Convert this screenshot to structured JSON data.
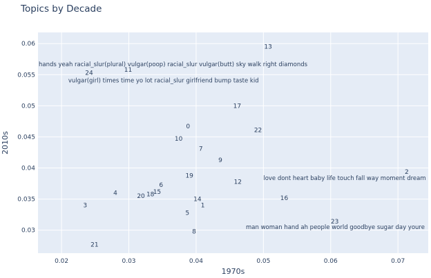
{
  "chart_data": {
    "type": "scatter",
    "title": "Topics by Decade",
    "xlabel": "1970s",
    "ylabel": "2010s",
    "xlim": [
      0.0165,
      0.0745
    ],
    "ylim": [
      0.0263,
      0.0618
    ],
    "xticks": [
      0.02,
      0.03,
      0.04,
      0.05,
      0.06,
      0.07
    ],
    "xtick_labels": [
      "0.02",
      "0.03",
      "0.04",
      "0.05",
      "0.06",
      "0.07"
    ],
    "yticks": [
      0.03,
      0.035,
      0.04,
      0.045,
      0.05,
      0.055,
      0.06
    ],
    "ytick_labels": [
      "0.03",
      "0.035",
      "0.04",
      "0.045",
      "0.05",
      "0.055",
      "0.06"
    ],
    "grid": true,
    "points": [
      {
        "label": "0",
        "x": 0.0388,
        "y": 0.0467
      },
      {
        "label": "1",
        "x": 0.041,
        "y": 0.034
      },
      {
        "label": "2",
        "x": 0.0713,
        "y": 0.0394
      },
      {
        "label": "3",
        "x": 0.0235,
        "y": 0.034
      },
      {
        "label": "4",
        "x": 0.028,
        "y": 0.036
      },
      {
        "label": "5",
        "x": 0.0387,
        "y": 0.0328
      },
      {
        "label": "6",
        "x": 0.0348,
        "y": 0.0373
      },
      {
        "label": "7",
        "x": 0.0407,
        "y": 0.0431
      },
      {
        "label": "8",
        "x": 0.0397,
        "y": 0.0298
      },
      {
        "label": "9",
        "x": 0.0436,
        "y": 0.0413
      },
      {
        "label": "10",
        "x": 0.0374,
        "y": 0.0447
      },
      {
        "label": "11",
        "x": 0.0299,
        "y": 0.0558
      },
      {
        "label": "12",
        "x": 0.0462,
        "y": 0.0378
      },
      {
        "label": "13",
        "x": 0.0507,
        "y": 0.0595
      },
      {
        "label": "14",
        "x": 0.0402,
        "y": 0.035
      },
      {
        "label": "15",
        "x": 0.0342,
        "y": 0.0362
      },
      {
        "label": "16",
        "x": 0.0531,
        "y": 0.0352
      },
      {
        "label": "17",
        "x": 0.0461,
        "y": 0.05
      },
      {
        "label": "18",
        "x": 0.0332,
        "y": 0.0358
      },
      {
        "label": "19",
        "x": 0.039,
        "y": 0.0388
      },
      {
        "label": "20",
        "x": 0.0318,
        "y": 0.0355
      },
      {
        "label": "21",
        "x": 0.0249,
        "y": 0.0277
      },
      {
        "label": "22",
        "x": 0.0492,
        "y": 0.0461
      },
      {
        "label": "23",
        "x": 0.0606,
        "y": 0.0314
      },
      {
        "label": "24",
        "x": 0.0241,
        "y": 0.0553
      }
    ],
    "annotations": [
      {
        "text": "hands yeah racial_slur(plural) vulgar(poop) racial_slur vulgar(butt) sky walk right diamonds",
        "x": 0.0166,
        "y": 0.0567,
        "anchor": "start"
      },
      {
        "text": "vulgar(girl) times time yo lot racial_slur girlfriend bump taste kid",
        "x": 0.021,
        "y": 0.0541,
        "anchor": "start"
      },
      {
        "text": "love dont heart baby life touch fall way moment dream",
        "x": 0.05,
        "y": 0.0384,
        "anchor": "start"
      },
      {
        "text": "man woman hand ah people world goodbye sugar day youre",
        "x": 0.0474,
        "y": 0.0305,
        "anchor": "start"
      }
    ],
    "colors": {
      "plot_bg": "#e5ecf6",
      "grid": "#ffffff",
      "text": "#2a3f5f"
    }
  }
}
